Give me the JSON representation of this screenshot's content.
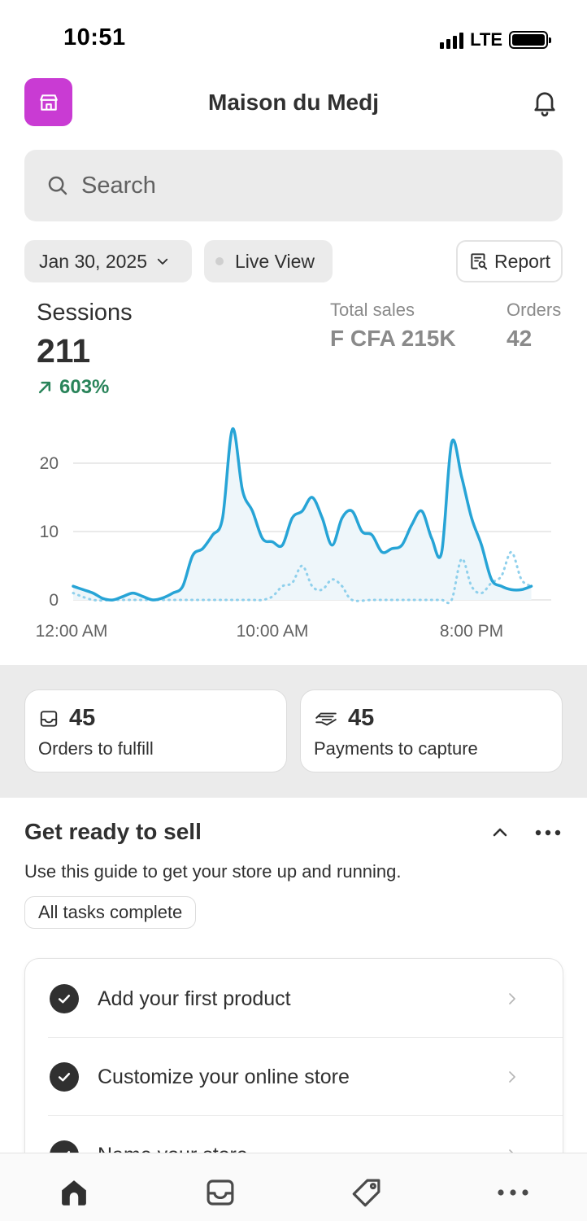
{
  "status_bar": {
    "time": "10:51",
    "network": "LTE"
  },
  "header": {
    "store_name": "Maison du Medj",
    "logo_icon": "store-icon",
    "notification_icon": "bell-icon"
  },
  "search": {
    "placeholder": "Search"
  },
  "filters": {
    "date": "Jan 30, 2025",
    "live_view": "Live View",
    "report": "Report"
  },
  "metrics": {
    "sessions_label": "Sessions",
    "sessions_value": "211",
    "sessions_change": "603%",
    "total_sales_label": "Total sales",
    "total_sales_value": "F CFA 215K",
    "orders_label": "Orders",
    "orders_value": "42"
  },
  "chart_data": {
    "type": "line",
    "title": "",
    "xlabel": "",
    "ylabel": "",
    "x_ticks": [
      "12:00 AM",
      "10:00 AM",
      "8:00 PM"
    ],
    "y_ticks": [
      0,
      10,
      20
    ],
    "ylim": [
      0,
      26
    ],
    "grid": true,
    "colors": {
      "primary": "#27a4d6",
      "comparison": "#8fd0ec"
    },
    "series": [
      {
        "name": "",
        "style": "solid",
        "x": [
          0.0,
          0.5,
          1.0,
          1.5,
          2.0,
          2.5,
          3.0,
          3.5,
          4.0,
          4.5,
          5.0,
          5.5,
          6.0,
          6.5,
          7.0,
          7.5,
          8.0,
          8.5,
          9.0,
          9.5,
          10.0,
          10.5,
          11.0,
          11.5,
          12.0,
          12.5,
          13.0,
          13.5,
          14.0,
          14.5,
          15.0,
          15.5,
          16.0,
          16.5,
          17.0,
          17.5,
          18.0,
          18.5,
          19.0,
          19.5,
          20.0,
          20.5,
          21.0,
          21.5,
          22.0,
          22.5,
          23.0
        ],
        "y": [
          2,
          1.5,
          1,
          0.2,
          0,
          0.5,
          1,
          0.5,
          0,
          0.3,
          1,
          2,
          6.5,
          7.5,
          9.5,
          12,
          25,
          16,
          13,
          9,
          8.5,
          8,
          12,
          13,
          15,
          12,
          8,
          12,
          13,
          10,
          9.5,
          7,
          7.5,
          8,
          11,
          13,
          9,
          7,
          23,
          18,
          12,
          8,
          3,
          2,
          1.5,
          1.5,
          2
        ],
        "x_end": 23.0
      },
      {
        "name": "",
        "style": "dotted",
        "x": [
          0,
          1,
          2,
          3,
          4,
          5,
          6,
          7,
          8,
          9,
          9.5,
          10,
          10.5,
          11,
          11.5,
          12,
          12.5,
          13,
          13.5,
          14,
          15,
          16,
          17,
          18,
          18.5,
          19,
          19.5,
          20,
          20.5,
          21,
          21.5,
          22,
          22.5,
          23
        ],
        "y": [
          1,
          0,
          0,
          0,
          0,
          0,
          0,
          0,
          0,
          0,
          0,
          0.5,
          2,
          2.5,
          5,
          2,
          1.5,
          3,
          2,
          0,
          0,
          0,
          0,
          0,
          0,
          0,
          6,
          2,
          1,
          2.5,
          3.5,
          7,
          3,
          2
        ]
      }
    ]
  },
  "tasks": [
    {
      "count": "45",
      "label": "Orders to fulfill",
      "icon": "inbox-icon"
    },
    {
      "count": "45",
      "label": "Payments to capture",
      "icon": "payment-icon"
    }
  ],
  "guide": {
    "title": "Get ready to sell",
    "description": "Use this guide to get your store up and running.",
    "badge": "All tasks complete",
    "items": [
      {
        "label": "Add your first product"
      },
      {
        "label": "Customize your online store"
      },
      {
        "label": "Name your store"
      }
    ]
  },
  "tab_bar": {
    "items": [
      {
        "icon": "home-icon",
        "active": true
      },
      {
        "icon": "orders-inbox-icon",
        "active": false
      },
      {
        "icon": "tag-icon",
        "active": false
      },
      {
        "icon": "more-icon",
        "active": false
      }
    ]
  }
}
